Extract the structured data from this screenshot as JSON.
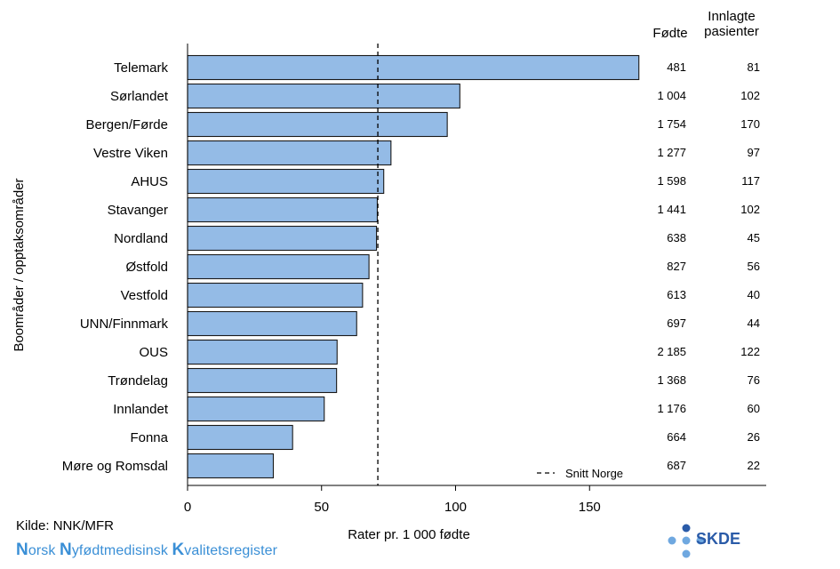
{
  "headers": {
    "births": "Fødte",
    "patients_line1": "Innlagte",
    "patients_line2": "pasienter"
  },
  "footer": {
    "source": "Kilde: NNK/MFR",
    "register_words": [
      {
        "cap": "N",
        "rest": "orsk "
      },
      {
        "cap": "N",
        "rest": "yfødtmedisinsk "
      },
      {
        "cap": "K",
        "rest": "valitetsregister"
      }
    ],
    "logo_text": "SKDE"
  },
  "colors": {
    "bar_fill": "#94bbe6",
    "bar_stroke": "#1a1a1a",
    "register_text": "#3a8fd6",
    "logo_dark": "#2a5ba8",
    "logo_light": "#6fa8e0"
  },
  "chart_data": {
    "type": "bar",
    "orientation": "horizontal",
    "categories": [
      "Telemark",
      "Sørlandet",
      "Bergen/Førde",
      "Vestre Viken",
      "AHUS",
      "Stavanger",
      "Nordland",
      "Østfold",
      "Vestfold",
      "UNN/Finnmark",
      "OUS",
      "Trøndelag",
      "Innlandet",
      "Fonna",
      "Møre og Romsdal"
    ],
    "values": [
      168.4,
      101.6,
      96.9,
      75.9,
      73.2,
      70.8,
      70.5,
      67.7,
      65.3,
      63.1,
      55.8,
      55.6,
      51.0,
      39.2,
      32.0
    ],
    "births": [
      "481",
      "1 004",
      "1 754",
      "1 277",
      "1 598",
      "1 441",
      "638",
      "827",
      "613",
      "697",
      "2 185",
      "1 368",
      "1 176",
      "664",
      "687"
    ],
    "patients": [
      "81",
      "102",
      "170",
      "97",
      "117",
      "102",
      "45",
      "56",
      "40",
      "44",
      "122",
      "76",
      "60",
      "26",
      "22"
    ],
    "reference_line": {
      "value": 71.0,
      "label": "Snitt Norge",
      "style": "dashed"
    },
    "xlabel": "Rater pr. 1 000 fødte",
    "ylabel": "Boområder / opptaksområder",
    "xlim": [
      0,
      180
    ],
    "xticks": [
      0,
      50,
      100,
      150
    ],
    "grid": false,
    "legend_position": "bottom-right"
  }
}
